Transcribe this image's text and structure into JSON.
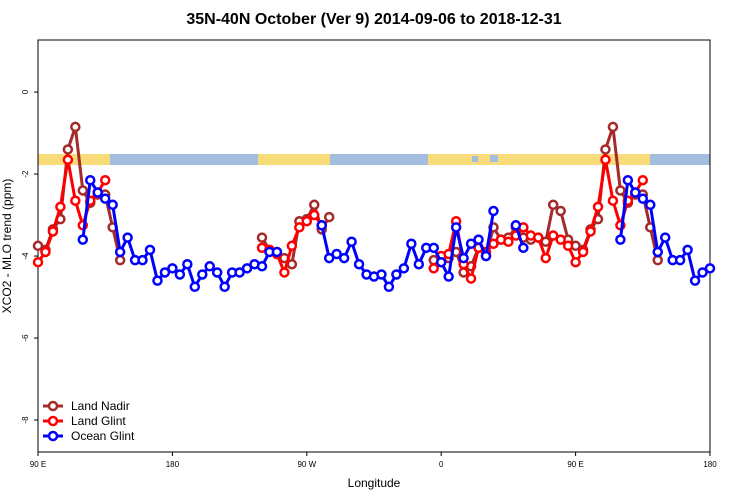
{
  "chart_data": {
    "type": "line",
    "title": "35N-40N October (Ver 9)   2014-09-06 to 2018-12-31",
    "x_label": "Longitude",
    "y_label": "XCO2 - MLO trend (ppm)",
    "x": [
      90,
      95,
      100,
      105,
      110,
      115,
      120,
      125,
      130,
      135,
      140,
      145,
      150,
      155,
      160,
      165,
      170,
      175,
      180,
      185,
      190,
      195,
      200,
      205,
      210,
      215,
      220,
      225,
      230,
      235,
      240,
      245,
      250,
      255,
      260,
      265,
      270,
      275,
      280,
      285,
      290,
      295,
      300,
      305,
      310,
      315,
      320,
      325,
      330,
      335,
      340,
      345,
      350,
      355,
      360,
      365,
      370,
      375,
      380,
      385,
      390,
      395,
      400,
      405,
      410,
      415,
      420,
      425,
      430,
      435,
      440,
      445,
      450,
      455,
      460,
      465,
      470,
      475,
      480,
      485,
      490,
      495,
      500,
      505,
      510,
      515,
      520,
      525,
      530,
      535,
      540
    ],
    "xlim": [
      90,
      540
    ],
    "xticks": [
      {
        "value": 90,
        "label": "90 E"
      },
      180,
      {
        "value": 270,
        "label": "90 W"
      },
      {
        "value": 360,
        "label": "0"
      },
      {
        "value": 450,
        "label": "90 E"
      },
      {
        "value": 540,
        "label": "180"
      }
    ],
    "ylim": [
      -8.78,
      1.27
    ],
    "yticks": [
      0,
      -2,
      -4,
      -6,
      -8
    ],
    "legend": "bottom-left",
    "series": [
      {
        "name": "Land Nadir",
        "color": "#a52a2a",
        "values": [
          -3.75,
          -3.85,
          -3.35,
          -3.1,
          -1.4,
          -0.85,
          -2.4,
          -2.7,
          -2.5,
          -2.5,
          -3.3,
          -4.1,
          null,
          null,
          null,
          null,
          null,
          null,
          null,
          null,
          null,
          null,
          null,
          null,
          null,
          null,
          null,
          null,
          null,
          null,
          -3.55,
          -3.85,
          -3.9,
          -4.05,
          -4.2,
          -3.15,
          -3.1,
          -2.75,
          -3.35,
          -3.05,
          null,
          null,
          null,
          null,
          null,
          null,
          null,
          null,
          null,
          null,
          null,
          null,
          null,
          -4.1,
          -4.15,
          -4.05,
          -3.9,
          -4.4,
          -4.25,
          -3.8,
          -4.0,
          -3.3,
          -3.6,
          -3.55,
          -3.3,
          -3.55,
          -3.6,
          -3.55,
          -3.65,
          -2.75,
          -2.9,
          -3.6,
          -3.75,
          -3.85,
          -3.35,
          -3.1,
          -1.4,
          -0.85,
          -2.4,
          -2.7,
          -2.5,
          -2.5,
          -3.3,
          -4.1,
          null,
          null,
          null,
          null,
          null,
          null,
          null
        ]
      },
      {
        "name": "Land Glint",
        "color": "#ff0000",
        "values": [
          -4.15,
          -3.9,
          -3.4,
          -2.8,
          -1.65,
          -2.65,
          -3.25,
          -2.65,
          -2.45,
          -2.15,
          null,
          null,
          null,
          null,
          null,
          null,
          null,
          null,
          null,
          null,
          null,
          null,
          null,
          null,
          null,
          null,
          null,
          null,
          null,
          null,
          -3.8,
          -3.85,
          -3.95,
          -4.4,
          -3.75,
          -3.3,
          -3.15,
          -3.0,
          -3.25,
          null,
          null,
          null,
          null,
          null,
          null,
          null,
          null,
          null,
          null,
          null,
          null,
          null,
          null,
          -4.3,
          -4.0,
          -3.95,
          -3.15,
          -4.2,
          -4.55,
          -3.8,
          -3.9,
          -3.7,
          -3.6,
          -3.65,
          -3.5,
          -3.3,
          -3.5,
          -3.55,
          -4.05,
          -3.5,
          -3.6,
          -3.75,
          -4.15,
          -3.9,
          -3.4,
          -2.8,
          -1.65,
          -2.65,
          -3.25,
          -2.65,
          -2.45,
          -2.15,
          null,
          null,
          null,
          null,
          null,
          null,
          null,
          null,
          null
        ]
      },
      {
        "name": "Ocean Glint",
        "color": "#0000ff",
        "values": [
          null,
          null,
          null,
          null,
          null,
          null,
          -3.6,
          -2.15,
          -2.45,
          -2.6,
          -2.75,
          -3.9,
          -3.55,
          -4.1,
          -4.1,
          -3.85,
          -4.6,
          -4.4,
          -4.3,
          -4.45,
          -4.2,
          -4.75,
          -4.45,
          -4.25,
          -4.4,
          -4.75,
          -4.4,
          -4.4,
          -4.3,
          -4.2,
          -4.25,
          -3.9,
          -3.9,
          null,
          null,
          null,
          null,
          null,
          -3.25,
          -4.05,
          -3.95,
          -4.05,
          -3.65,
          -4.2,
          -4.45,
          -4.5,
          -4.45,
          -4.75,
          -4.45,
          -4.3,
          -3.7,
          -4.2,
          -3.8,
          -3.8,
          -4.15,
          -4.5,
          -3.3,
          -4.05,
          -3.7,
          -3.6,
          -4.0,
          -2.9,
          null,
          null,
          -3.25,
          -3.8,
          null,
          null,
          null,
          null,
          null,
          null,
          null,
          null,
          null,
          null,
          null,
          null,
          -3.6,
          -2.15,
          -2.45,
          -2.6,
          -2.75,
          -3.9,
          -3.55,
          -4.1,
          -4.1,
          -3.85,
          -4.6,
          -4.4,
          -4.3
        ]
      }
    ]
  }
}
